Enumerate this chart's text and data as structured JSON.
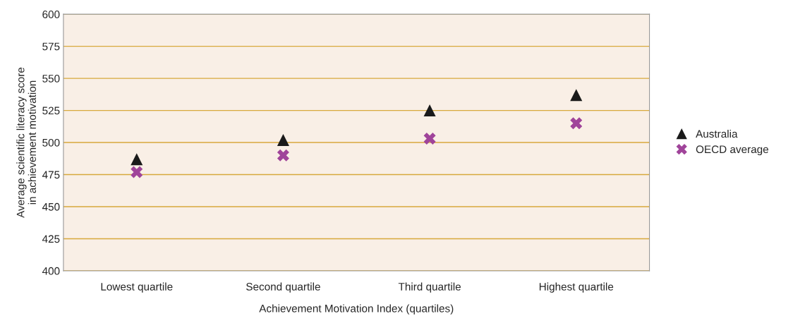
{
  "chart_data": {
    "type": "scatter",
    "xlabel": "Achievement Motivation Index (quartiles)",
    "ylabel": "Average scientific literacy score\nin achievement motivation",
    "categories": [
      "Lowest quartile",
      "Second quartile",
      "Third quartile",
      "Highest quartile"
    ],
    "series": [
      {
        "name": "Australia",
        "color": "#1a1a1a",
        "marker": "triangle",
        "values": [
          487,
          502,
          525,
          537
        ]
      },
      {
        "name": "OECD average",
        "color": "#a0449a",
        "marker": "cross",
        "values": [
          477,
          490,
          503,
          515
        ]
      }
    ],
    "ylim": [
      400,
      600
    ],
    "yticks": [
      400,
      425,
      450,
      475,
      500,
      525,
      550,
      575,
      600
    ],
    "grid": "y",
    "legend": "right"
  }
}
